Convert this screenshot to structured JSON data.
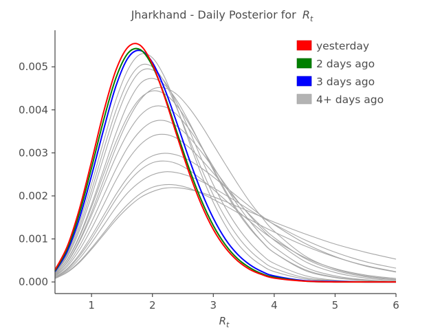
{
  "chart_data": {
    "type": "line",
    "title": "Jharkhand - Daily Posterior for",
    "title_symbol": "R",
    "title_symbol_sub": "t",
    "xlabel_symbol": "R",
    "xlabel_symbol_sub": "t",
    "ylabel": "",
    "xlim": [
      0.4,
      6.0
    ],
    "ylim": [
      -0.00027,
      0.00585
    ],
    "x_ticks": [
      1,
      2,
      3,
      4,
      5,
      6
    ],
    "x_tick_labels": [
      "1",
      "2",
      "3",
      "4",
      "5",
      "6"
    ],
    "y_ticks": [
      0.0,
      0.001,
      0.002,
      0.003,
      0.004,
      0.005
    ],
    "y_tick_labels": [
      "0.000",
      "0.001",
      "0.002",
      "0.003",
      "0.004",
      "0.005"
    ],
    "grid": false,
    "legend_position": "top-right",
    "legend": [
      {
        "label": "yesterday",
        "color": "#ff0000"
      },
      {
        "label": "2 days ago",
        "color": "#008000"
      },
      {
        "label": "3 days ago",
        "color": "#0000ff"
      },
      {
        "label": "4+ days ago",
        "color": "#b3b3b3"
      }
    ],
    "curve_x": [
      0.4,
      0.6,
      0.8,
      1.0,
      1.2,
      1.4,
      1.6,
      1.8,
      2.0,
      2.2,
      2.4,
      2.6,
      2.8,
      3.0,
      3.2,
      3.4,
      3.6,
      3.8,
      4.0,
      4.5,
      5.0,
      5.5,
      6.0
    ],
    "series": [
      {
        "name": "4+ days ago",
        "color": "#a6a6a6",
        "values": [
          8e-05,
          0.00023,
          0.00047,
          0.00079,
          0.00114,
          0.0015,
          0.00181,
          0.00205,
          0.0022,
          0.00226,
          0.00225,
          0.00218,
          0.00206,
          0.00192,
          0.00177,
          0.00161,
          0.00145,
          0.0013,
          0.00116,
          0.00084,
          0.00058,
          0.00038,
          0.00024
        ]
      },
      {
        "name": "4+ days ago",
        "color": "#a6a6a6",
        "values": [
          0.0001,
          0.00029,
          0.0006,
          0.001,
          0.00146,
          0.00192,
          0.00231,
          0.0026,
          0.00277,
          0.00281,
          0.00275,
          0.0026,
          0.00239,
          0.00215,
          0.0019,
          0.00165,
          0.00141,
          0.00118,
          0.00098,
          0.00057,
          0.00031,
          0.00016,
          8e-05
        ]
      },
      {
        "name": "4+ days ago",
        "color": "#a6a6a6",
        "values": [
          8e-05,
          0.00022,
          0.00045,
          0.00076,
          0.0011,
          0.00144,
          0.00173,
          0.00196,
          0.0021,
          0.00218,
          0.00219,
          0.00215,
          0.00208,
          0.00198,
          0.00187,
          0.00175,
          0.00163,
          0.00151,
          0.00139,
          0.00112,
          0.00088,
          0.00069,
          0.00053
        ]
      },
      {
        "name": "4+ days ago",
        "color": "#a6a6a6",
        "values": [
          9e-05,
          0.00026,
          0.00054,
          0.00091,
          0.00132,
          0.00173,
          0.00208,
          0.00233,
          0.00249,
          0.00256,
          0.00254,
          0.00246,
          0.00234,
          0.00219,
          0.00202,
          0.00185,
          0.00167,
          0.0015,
          0.00134,
          0.00098,
          0.00069,
          0.00047,
          0.00032
        ]
      },
      {
        "name": "4+ days ago",
        "color": "#a6a6a6",
        "values": [
          0.00013,
          0.00036,
          0.00074,
          0.00124,
          0.0018,
          0.00236,
          0.00284,
          0.00319,
          0.00339,
          0.00343,
          0.00334,
          0.00313,
          0.00285,
          0.00253,
          0.0022,
          0.00187,
          0.00156,
          0.00128,
          0.00103,
          0.00055,
          0.00027,
          0.00012,
          5e-05
        ]
      },
      {
        "name": "4+ days ago",
        "color": "#a6a6a6",
        "values": [
          0.00011,
          0.00031,
          0.00064,
          0.00107,
          0.00155,
          0.00203,
          0.00244,
          0.00275,
          0.00293,
          0.00299,
          0.00295,
          0.00283,
          0.00265,
          0.00244,
          0.00221,
          0.00198,
          0.00175,
          0.00153,
          0.00133,
          0.0009,
          0.00059,
          0.00037,
          0.00023
        ]
      },
      {
        "name": "4+ days ago",
        "color": "#a6a6a6",
        "values": [
          0.00014,
          0.0004,
          0.00083,
          0.00139,
          0.00201,
          0.00262,
          0.00314,
          0.00351,
          0.00372,
          0.00375,
          0.00362,
          0.00337,
          0.00303,
          0.00265,
          0.00226,
          0.00188,
          0.00154,
          0.00123,
          0.00097,
          0.00048,
          0.00022,
          9e-05,
          3e-05
        ]
      },
      {
        "name": "4+ days ago",
        "color": "#a6a6a6",
        "values": [
          0.00016,
          0.00045,
          0.00093,
          0.00155,
          0.00224,
          0.00291,
          0.00347,
          0.00387,
          0.00407,
          0.00407,
          0.00389,
          0.00356,
          0.00314,
          0.00268,
          0.00222,
          0.00179,
          0.00141,
          0.00108,
          0.00081,
          0.00035,
          0.00014,
          5e-05,
          1e-05
        ]
      },
      {
        "name": "4+ days ago",
        "color": "#a6a6a6",
        "values": [
          0.00018,
          0.00051,
          0.00104,
          0.00174,
          0.00251,
          0.00325,
          0.00386,
          0.00427,
          0.00444,
          0.00437,
          0.0041,
          0.00368,
          0.00317,
          0.00263,
          0.00212,
          0.00166,
          0.00127,
          0.00094,
          0.00068,
          0.00027,
          0.0001,
          3e-05,
          1e-05
        ]
      },
      {
        "name": "4+ days ago",
        "color": "#a6a6a6",
        "values": [
          0.00016,
          0.00046,
          0.00096,
          0.00162,
          0.00237,
          0.00312,
          0.00376,
          0.00423,
          0.00448,
          0.00451,
          0.00436,
          0.00405,
          0.00365,
          0.00319,
          0.00273,
          0.00228,
          0.00186,
          0.0015,
          0.00118,
          0.00061,
          0.0003,
          0.00014,
          6e-05
        ]
      },
      {
        "name": "4+ days ago",
        "color": "#a6a6a6",
        "values": [
          0.00018,
          0.00052,
          0.00107,
          0.0018,
          0.00262,
          0.00345,
          0.00415,
          0.00461,
          0.00473,
          0.00458,
          0.00422,
          0.00372,
          0.00316,
          0.0026,
          0.00208,
          0.00162,
          0.00124,
          0.00093,
          0.00068,
          0.00029,
          0.00011,
          4e-05,
          1e-05
        ]
      },
      {
        "name": "4+ days ago",
        "color": "#a6a6a6",
        "values": [
          0.0002,
          0.00058,
          0.00119,
          0.002,
          0.0029,
          0.00378,
          0.00448,
          0.00489,
          0.00493,
          0.00466,
          0.00416,
          0.00354,
          0.00288,
          0.00226,
          0.00172,
          0.00127,
          0.00091,
          0.00063,
          0.00043,
          0.00015,
          4e-05,
          1e-05,
          0.0
        ]
      },
      {
        "name": "4+ days ago",
        "color": "#a6a6a6",
        "values": [
          0.00021,
          0.00062,
          0.00127,
          0.00213,
          0.00308,
          0.00398,
          0.00467,
          0.00503,
          0.005,
          0.00464,
          0.00404,
          0.00334,
          0.00265,
          0.00202,
          0.00149,
          0.00106,
          0.00073,
          0.00049,
          0.00032,
          0.0001,
          3e-05,
          1e-05,
          0.0
        ]
      },
      {
        "name": "4+ days ago",
        "color": "#a6a6a6",
        "values": [
          0.00022,
          0.00066,
          0.00136,
          0.00228,
          0.00328,
          0.00423,
          0.00494,
          0.00529,
          0.00521,
          0.00476,
          0.00406,
          0.00327,
          0.00251,
          0.00185,
          0.00131,
          0.00089,
          0.00059,
          0.00038,
          0.00024,
          7e-05,
          2e-05,
          0.0,
          0.0
        ]
      },
      {
        "name": "3 days ago",
        "color": "#0000ff",
        "values": [
          0.00024,
          0.00071,
          0.00147,
          0.00247,
          0.00355,
          0.00455,
          0.00521,
          0.00538,
          0.0051,
          0.00449,
          0.0037,
          0.00287,
          0.00211,
          0.00148,
          0.00099,
          0.00064,
          0.0004,
          0.00024,
          0.00014,
          3e-05,
          1e-05,
          0.0,
          0.0
        ]
      },
      {
        "name": "2 days ago",
        "color": "#008000",
        "values": [
          0.00026,
          0.00077,
          0.00159,
          0.00265,
          0.00377,
          0.00474,
          0.00532,
          0.0054,
          0.00502,
          0.00433,
          0.00349,
          0.00265,
          0.00191,
          0.00131,
          0.00086,
          0.00054,
          0.00033,
          0.00019,
          0.00011,
          2e-05,
          0.0,
          0.0,
          0.0
        ]
      },
      {
        "name": "yesterday",
        "color": "#ff0000",
        "values": [
          0.00028,
          0.00082,
          0.00169,
          0.0028,
          0.00396,
          0.00492,
          0.00546,
          0.0055,
          0.00506,
          0.0043,
          0.00341,
          0.00255,
          0.00181,
          0.00122,
          0.00079,
          0.00049,
          0.00029,
          0.00017,
          9e-05,
          2e-05,
          0.0,
          0.0,
          0.0
        ]
      }
    ]
  }
}
